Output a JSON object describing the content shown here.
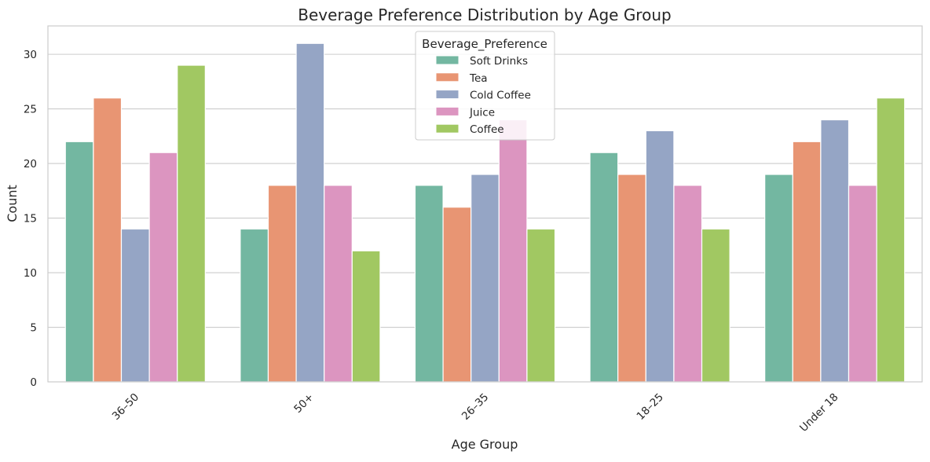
{
  "chart_data": {
    "type": "bar",
    "title": "Beverage Preference Distribution by Age Group",
    "xlabel": "Age Group",
    "ylabel": "Count",
    "categories": [
      "36–50",
      "50+",
      "26–35",
      "18–25",
      "Under 18"
    ],
    "ylim": [
      0,
      32.6
    ],
    "yticks": [
      0,
      5,
      10,
      15,
      20,
      25,
      30
    ],
    "grid": true,
    "legend": {
      "title": "Beverage_Preference",
      "placement": "top-center"
    },
    "series": [
      {
        "name": "Soft Drinks",
        "color": "#73b7a1",
        "values": [
          22,
          14,
          18,
          21,
          19
        ]
      },
      {
        "name": "Tea",
        "color": "#e89573",
        "values": [
          26,
          18,
          16,
          19,
          22
        ]
      },
      {
        "name": "Cold Coffee",
        "color": "#95a5c5",
        "values": [
          14,
          31,
          19,
          23,
          24
        ]
      },
      {
        "name": "Juice",
        "color": "#dc95c0",
        "values": [
          21,
          18,
          24,
          18,
          18
        ]
      },
      {
        "name": "Coffee",
        "color": "#a1c862",
        "values": [
          29,
          12,
          14,
          14,
          26
        ]
      }
    ]
  }
}
